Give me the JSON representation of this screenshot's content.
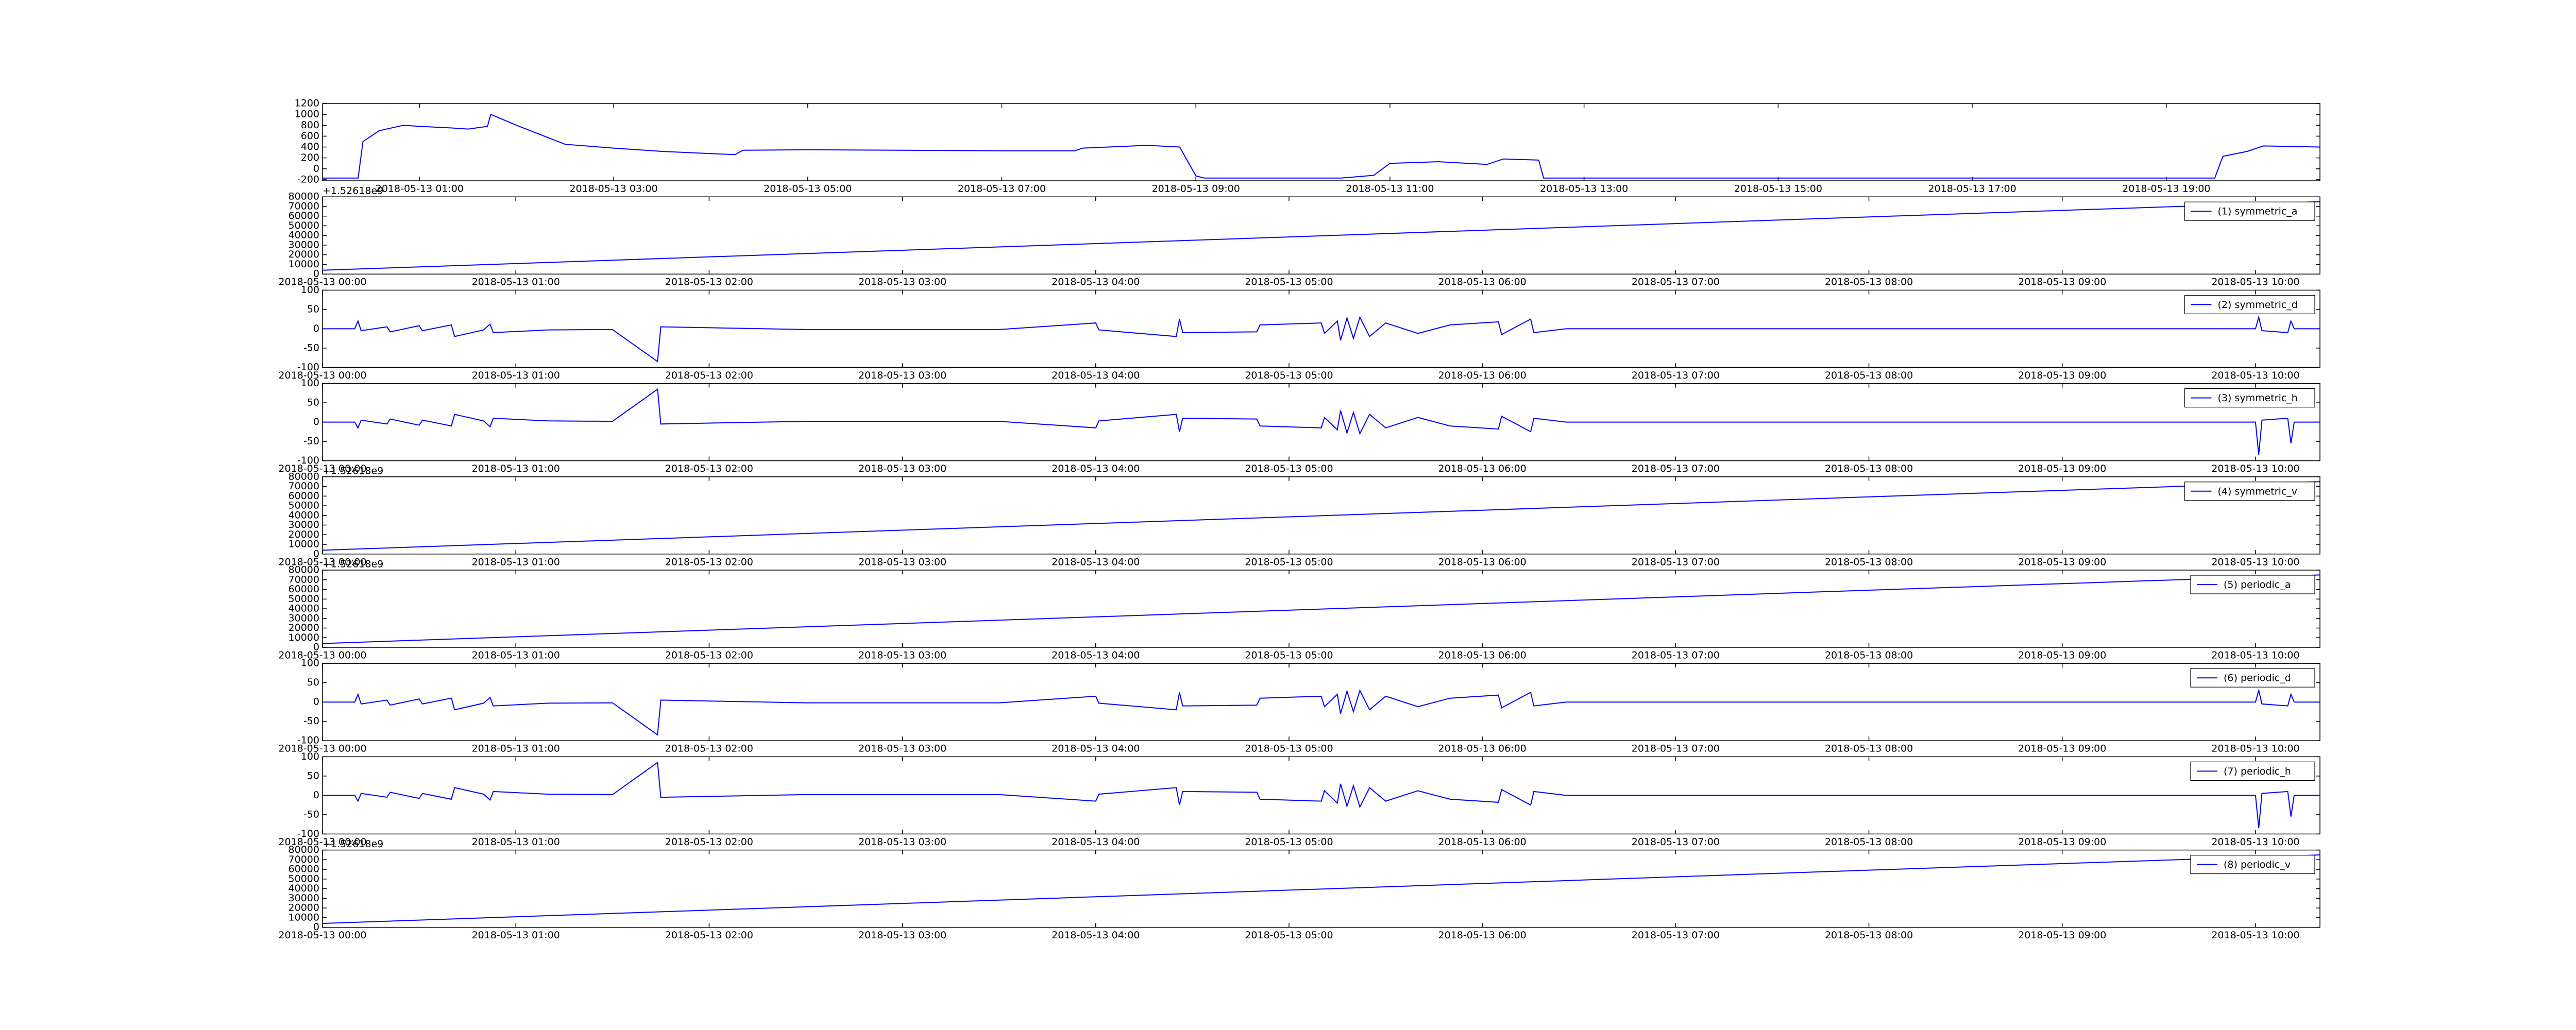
{
  "chart_data": [
    {
      "type": "line",
      "color": "#0000ff",
      "x": [
        "2018-05-13 00:00",
        "2018-05-13 00:22",
        "2018-05-13 00:25",
        "2018-05-13 00:35",
        "2018-05-13 00:50",
        "2018-05-13 01:00",
        "2018-05-13 01:20",
        "2018-05-13 01:30",
        "2018-05-13 01:42",
        "2018-05-13 01:44",
        "2018-05-13 02:00",
        "2018-05-13 02:30",
        "2018-05-13 03:00",
        "2018-05-13 03:30",
        "2018-05-13 04:00",
        "2018-05-13 04:15",
        "2018-05-13 04:20",
        "2018-05-13 05:00",
        "2018-05-13 06:00",
        "2018-05-13 07:00",
        "2018-05-13 07:45",
        "2018-05-13 07:50",
        "2018-05-13 08:30",
        "2018-05-13 08:50",
        "2018-05-13 09:00",
        "2018-05-13 09:05",
        "2018-05-13 10:30",
        "2018-05-13 10:50",
        "2018-05-13 11:00",
        "2018-05-13 11:30",
        "2018-05-13 12:00",
        "2018-05-13 12:10",
        "2018-05-13 12:32",
        "2018-05-13 12:35",
        "2018-05-13 19:30",
        "2018-05-13 19:35",
        "2018-05-13 19:50",
        "2018-05-13 20:00",
        "2018-05-13 20:35"
      ],
      "values": [
        -170,
        -170,
        500,
        700,
        800,
        780,
        750,
        730,
        780,
        1000,
        800,
        450,
        380,
        320,
        280,
        260,
        340,
        350,
        340,
        330,
        330,
        380,
        430,
        400,
        -130,
        -170,
        -170,
        -120,
        100,
        130,
        80,
        180,
        160,
        -170,
        -170,
        230,
        320,
        420,
        400
      ],
      "xlim": [
        "2018-05-13 00:00",
        "2018-05-13 20:35"
      ],
      "xticks": [
        "2018-05-13 01:00",
        "2018-05-13 03:00",
        "2018-05-13 05:00",
        "2018-05-13 07:00",
        "2018-05-13 09:00",
        "2018-05-13 11:00",
        "2018-05-13 13:00",
        "2018-05-13 15:00",
        "2018-05-13 17:00",
        "2018-05-13 19:00"
      ],
      "ylim": [
        -220,
        1200
      ],
      "yticks": [
        -200,
        0,
        200,
        400,
        600,
        800,
        1000,
        1200
      ]
    },
    {
      "type": "line",
      "offset_text": "+1.52618e9",
      "x": [
        "2018-05-13 00:00",
        "2018-05-13 02:00",
        "2018-05-13 04:00",
        "2018-05-13 06:00",
        "2018-05-13 08:00",
        "2018-05-13 10:20"
      ],
      "series": [
        {
          "name": "(1) symmetric_a",
          "color": "#0000ff",
          "values": [
            4000,
            17800,
            31600,
            45400,
            59200,
            75000
          ]
        }
      ],
      "xlim": [
        "2018-05-13 00:00",
        "2018-05-13 10:20"
      ],
      "xticks": [
        "2018-05-13 00:00",
        "2018-05-13 01:00",
        "2018-05-13 02:00",
        "2018-05-13 03:00",
        "2018-05-13 04:00",
        "2018-05-13 05:00",
        "2018-05-13 06:00",
        "2018-05-13 07:00",
        "2018-05-13 08:00",
        "2018-05-13 09:00",
        "2018-05-13 10:00"
      ],
      "ylim": [
        0,
        80000
      ],
      "yticks": [
        0,
        10000,
        20000,
        30000,
        40000,
        50000,
        60000,
        70000,
        80000
      ]
    },
    {
      "type": "line",
      "x": [
        "2018-05-13 00:00",
        "2018-05-13 00:10",
        "2018-05-13 00:11",
        "2018-05-13 00:12",
        "2018-05-13 00:20",
        "2018-05-13 00:21",
        "2018-05-13 00:30",
        "2018-05-13 00:31",
        "2018-05-13 00:40",
        "2018-05-13 00:41",
        "2018-05-13 00:50",
        "2018-05-13 00:52",
        "2018-05-13 00:53",
        "2018-05-13 01:10",
        "2018-05-13 01:30",
        "2018-05-13 01:44",
        "2018-05-13 01:45",
        "2018-05-13 02:30",
        "2018-05-13 03:30",
        "2018-05-13 04:00",
        "2018-05-13 04:01",
        "2018-05-13 04:25",
        "2018-05-13 04:26",
        "2018-05-13 04:27",
        "2018-05-13 04:50",
        "2018-05-13 04:51",
        "2018-05-13 05:10",
        "2018-05-13 05:11",
        "2018-05-13 05:15",
        "2018-05-13 05:16",
        "2018-05-13 05:18",
        "2018-05-13 05:20",
        "2018-05-13 05:22",
        "2018-05-13 05:25",
        "2018-05-13 05:30",
        "2018-05-13 05:40",
        "2018-05-13 05:50",
        "2018-05-13 06:05",
        "2018-05-13 06:06",
        "2018-05-13 06:15",
        "2018-05-13 06:16",
        "2018-05-13 06:26",
        "2018-05-13 10:00",
        "2018-05-13 10:01",
        "2018-05-13 10:02",
        "2018-05-13 10:10",
        "2018-05-13 10:11",
        "2018-05-13 10:12",
        "2018-05-13 10:20"
      ],
      "series": [
        {
          "name": "(2) symmetric_d",
          "color": "#0000ff",
          "values": [
            0,
            0,
            20,
            -5,
            5,
            -8,
            8,
            -5,
            10,
            -20,
            -3,
            12,
            -10,
            -3,
            -2,
            -85,
            5,
            -2,
            -2,
            15,
            -3,
            -20,
            25,
            -10,
            -8,
            10,
            15,
            -12,
            20,
            -30,
            28,
            -25,
            30,
            -20,
            15,
            -12,
            10,
            18,
            -15,
            25,
            -10,
            0,
            0,
            30,
            -5,
            -10,
            20,
            0,
            0
          ]
        }
      ],
      "xlim": [
        "2018-05-13 00:00",
        "2018-05-13 10:20"
      ],
      "xticks": [
        "2018-05-13 00:00",
        "2018-05-13 01:00",
        "2018-05-13 02:00",
        "2018-05-13 03:00",
        "2018-05-13 04:00",
        "2018-05-13 05:00",
        "2018-05-13 06:00",
        "2018-05-13 07:00",
        "2018-05-13 08:00",
        "2018-05-13 09:00",
        "2018-05-13 10:00"
      ],
      "ylim": [
        -100,
        100
      ],
      "yticks": [
        -100,
        -50,
        0,
        50,
        100
      ]
    },
    {
      "type": "line",
      "x": [
        "2018-05-13 00:00",
        "2018-05-13 00:10",
        "2018-05-13 00:11",
        "2018-05-13 00:12",
        "2018-05-13 00:20",
        "2018-05-13 00:21",
        "2018-05-13 00:30",
        "2018-05-13 00:31",
        "2018-05-13 00:40",
        "2018-05-13 00:41",
        "2018-05-13 00:50",
        "2018-05-13 00:52",
        "2018-05-13 00:53",
        "2018-05-13 01:10",
        "2018-05-13 01:30",
        "2018-05-13 01:44",
        "2018-05-13 01:45",
        "2018-05-13 02:30",
        "2018-05-13 03:30",
        "2018-05-13 04:00",
        "2018-05-13 04:01",
        "2018-05-13 04:25",
        "2018-05-13 04:26",
        "2018-05-13 04:27",
        "2018-05-13 04:50",
        "2018-05-13 04:51",
        "2018-05-13 05:10",
        "2018-05-13 05:11",
        "2018-05-13 05:15",
        "2018-05-13 05:16",
        "2018-05-13 05:18",
        "2018-05-13 05:20",
        "2018-05-13 05:22",
        "2018-05-13 05:25",
        "2018-05-13 05:30",
        "2018-05-13 05:40",
        "2018-05-13 05:50",
        "2018-05-13 06:05",
        "2018-05-13 06:06",
        "2018-05-13 06:15",
        "2018-05-13 06:16",
        "2018-05-13 06:26",
        "2018-05-13 10:00",
        "2018-05-13 10:01",
        "2018-05-13 10:02",
        "2018-05-13 10:10",
        "2018-05-13 10:11",
        "2018-05-13 10:12",
        "2018-05-13 10:20"
      ],
      "series": [
        {
          "name": "(3) symmetric_h",
          "color": "#0000ff",
          "values": [
            0,
            0,
            -15,
            5,
            -5,
            8,
            -8,
            5,
            -10,
            20,
            3,
            -12,
            10,
            3,
            2,
            85,
            -5,
            2,
            2,
            -15,
            3,
            20,
            -25,
            10,
            8,
            -10,
            -15,
            12,
            -20,
            30,
            -28,
            25,
            -30,
            20,
            -15,
            12,
            -10,
            -18,
            15,
            -25,
            10,
            0,
            0,
            -85,
            5,
            10,
            -55,
            0,
            0
          ]
        }
      ],
      "xlim": [
        "2018-05-13 00:00",
        "2018-05-13 10:20"
      ],
      "xticks": [
        "2018-05-13 00:00",
        "2018-05-13 01:00",
        "2018-05-13 02:00",
        "2018-05-13 03:00",
        "2018-05-13 04:00",
        "2018-05-13 05:00",
        "2018-05-13 06:00",
        "2018-05-13 07:00",
        "2018-05-13 08:00",
        "2018-05-13 09:00",
        "2018-05-13 10:00"
      ],
      "ylim": [
        -100,
        100
      ],
      "yticks": [
        -100,
        -50,
        0,
        50,
        100
      ]
    },
    {
      "type": "line",
      "offset_text": "+1.52618e9",
      "x": [
        "2018-05-13 00:00",
        "2018-05-13 02:00",
        "2018-05-13 04:00",
        "2018-05-13 06:00",
        "2018-05-13 08:00",
        "2018-05-13 10:20"
      ],
      "series": [
        {
          "name": "(4) symmetric_v",
          "color": "#0000ff",
          "values": [
            4000,
            17800,
            31600,
            45400,
            59200,
            75000
          ]
        }
      ],
      "xlim": [
        "2018-05-13 00:00",
        "2018-05-13 10:20"
      ],
      "xticks": [
        "2018-05-13 00:00",
        "2018-05-13 01:00",
        "2018-05-13 02:00",
        "2018-05-13 03:00",
        "2018-05-13 04:00",
        "2018-05-13 05:00",
        "2018-05-13 06:00",
        "2018-05-13 07:00",
        "2018-05-13 08:00",
        "2018-05-13 09:00",
        "2018-05-13 10:00"
      ],
      "ylim": [
        0,
        80000
      ],
      "yticks": [
        0,
        10000,
        20000,
        30000,
        40000,
        50000,
        60000,
        70000,
        80000
      ]
    },
    {
      "type": "line",
      "offset_text": "+1.52618e9",
      "x": [
        "2018-05-13 00:00",
        "2018-05-13 02:00",
        "2018-05-13 04:00",
        "2018-05-13 06:00",
        "2018-05-13 08:00",
        "2018-05-13 10:20"
      ],
      "series": [
        {
          "name": "(5) periodic_a",
          "color": "#0000ff",
          "values": [
            4000,
            17800,
            31600,
            45400,
            59200,
            75000
          ]
        }
      ],
      "xlim": [
        "2018-05-13 00:00",
        "2018-05-13 10:20"
      ],
      "xticks": [
        "2018-05-13 00:00",
        "2018-05-13 01:00",
        "2018-05-13 02:00",
        "2018-05-13 03:00",
        "2018-05-13 04:00",
        "2018-05-13 05:00",
        "2018-05-13 06:00",
        "2018-05-13 07:00",
        "2018-05-13 08:00",
        "2018-05-13 09:00",
        "2018-05-13 10:00"
      ],
      "ylim": [
        0,
        80000
      ],
      "yticks": [
        0,
        10000,
        20000,
        30000,
        40000,
        50000,
        60000,
        70000,
        80000
      ]
    },
    {
      "type": "line",
      "x": [
        "2018-05-13 00:00",
        "2018-05-13 00:10",
        "2018-05-13 00:11",
        "2018-05-13 00:12",
        "2018-05-13 00:20",
        "2018-05-13 00:21",
        "2018-05-13 00:30",
        "2018-05-13 00:31",
        "2018-05-13 00:40",
        "2018-05-13 00:41",
        "2018-05-13 00:50",
        "2018-05-13 00:52",
        "2018-05-13 00:53",
        "2018-05-13 01:10",
        "2018-05-13 01:30",
        "2018-05-13 01:44",
        "2018-05-13 01:45",
        "2018-05-13 02:30",
        "2018-05-13 03:30",
        "2018-05-13 04:00",
        "2018-05-13 04:01",
        "2018-05-13 04:25",
        "2018-05-13 04:26",
        "2018-05-13 04:27",
        "2018-05-13 04:50",
        "2018-05-13 04:51",
        "2018-05-13 05:10",
        "2018-05-13 05:11",
        "2018-05-13 05:15",
        "2018-05-13 05:16",
        "2018-05-13 05:18",
        "2018-05-13 05:20",
        "2018-05-13 05:22",
        "2018-05-13 05:25",
        "2018-05-13 05:30",
        "2018-05-13 05:40",
        "2018-05-13 05:50",
        "2018-05-13 06:05",
        "2018-05-13 06:06",
        "2018-05-13 06:15",
        "2018-05-13 06:16",
        "2018-05-13 06:26",
        "2018-05-13 10:00",
        "2018-05-13 10:01",
        "2018-05-13 10:02",
        "2018-05-13 10:10",
        "2018-05-13 10:11",
        "2018-05-13 10:12",
        "2018-05-13 10:20"
      ],
      "series": [
        {
          "name": "(6) periodic_d",
          "color": "#0000ff",
          "values": [
            0,
            0,
            20,
            -5,
            5,
            -8,
            8,
            -5,
            10,
            -20,
            -3,
            12,
            -10,
            -3,
            -2,
            -85,
            5,
            -2,
            -2,
            15,
            -3,
            -20,
            25,
            -10,
            -8,
            10,
            15,
            -12,
            20,
            -30,
            28,
            -25,
            30,
            -20,
            15,
            -12,
            10,
            18,
            -15,
            25,
            -10,
            0,
            0,
            30,
            -5,
            -10,
            20,
            0,
            0
          ]
        }
      ],
      "xlim": [
        "2018-05-13 00:00",
        "2018-05-13 10:20"
      ],
      "xticks": [
        "2018-05-13 00:00",
        "2018-05-13 01:00",
        "2018-05-13 02:00",
        "2018-05-13 03:00",
        "2018-05-13 04:00",
        "2018-05-13 05:00",
        "2018-05-13 06:00",
        "2018-05-13 07:00",
        "2018-05-13 08:00",
        "2018-05-13 09:00",
        "2018-05-13 10:00"
      ],
      "ylim": [
        -100,
        100
      ],
      "yticks": [
        -100,
        -50,
        0,
        50,
        100
      ]
    },
    {
      "type": "line",
      "x": [
        "2018-05-13 00:00",
        "2018-05-13 00:10",
        "2018-05-13 00:11",
        "2018-05-13 00:12",
        "2018-05-13 00:20",
        "2018-05-13 00:21",
        "2018-05-13 00:30",
        "2018-05-13 00:31",
        "2018-05-13 00:40",
        "2018-05-13 00:41",
        "2018-05-13 00:50",
        "2018-05-13 00:52",
        "2018-05-13 00:53",
        "2018-05-13 01:10",
        "2018-05-13 01:30",
        "2018-05-13 01:44",
        "2018-05-13 01:45",
        "2018-05-13 02:30",
        "2018-05-13 03:30",
        "2018-05-13 04:00",
        "2018-05-13 04:01",
        "2018-05-13 04:25",
        "2018-05-13 04:26",
        "2018-05-13 04:27",
        "2018-05-13 04:50",
        "2018-05-13 04:51",
        "2018-05-13 05:10",
        "2018-05-13 05:11",
        "2018-05-13 05:15",
        "2018-05-13 05:16",
        "2018-05-13 05:18",
        "2018-05-13 05:20",
        "2018-05-13 05:22",
        "2018-05-13 05:25",
        "2018-05-13 05:30",
        "2018-05-13 05:40",
        "2018-05-13 05:50",
        "2018-05-13 06:05",
        "2018-05-13 06:06",
        "2018-05-13 06:15",
        "2018-05-13 06:16",
        "2018-05-13 06:26",
        "2018-05-13 10:00",
        "2018-05-13 10:01",
        "2018-05-13 10:02",
        "2018-05-13 10:10",
        "2018-05-13 10:11",
        "2018-05-13 10:12",
        "2018-05-13 10:20"
      ],
      "series": [
        {
          "name": "(7) periodic_h",
          "color": "#0000ff",
          "values": [
            0,
            0,
            -15,
            5,
            -5,
            8,
            -8,
            5,
            -10,
            20,
            3,
            -12,
            10,
            3,
            2,
            85,
            -5,
            2,
            2,
            -15,
            3,
            20,
            -25,
            10,
            8,
            -10,
            -15,
            12,
            -20,
            30,
            -28,
            25,
            -30,
            20,
            -15,
            12,
            -10,
            -18,
            15,
            -25,
            10,
            0,
            0,
            -85,
            5,
            10,
            -55,
            0,
            0
          ]
        }
      ],
      "xlim": [
        "2018-05-13 00:00",
        "2018-05-13 10:20"
      ],
      "xticks": [
        "2018-05-13 00:00",
        "2018-05-13 01:00",
        "2018-05-13 02:00",
        "2018-05-13 03:00",
        "2018-05-13 04:00",
        "2018-05-13 05:00",
        "2018-05-13 06:00",
        "2018-05-13 07:00",
        "2018-05-13 08:00",
        "2018-05-13 09:00",
        "2018-05-13 10:00"
      ],
      "ylim": [
        -100,
        100
      ],
      "yticks": [
        -100,
        -50,
        0,
        50,
        100
      ]
    },
    {
      "type": "line",
      "offset_text": "+1.52618e9",
      "x": [
        "2018-05-13 00:00",
        "2018-05-13 02:00",
        "2018-05-13 04:00",
        "2018-05-13 06:00",
        "2018-05-13 08:00",
        "2018-05-13 10:20"
      ],
      "series": [
        {
          "name": "(8) periodic_v",
          "color": "#0000ff",
          "values": [
            4000,
            17800,
            31600,
            45400,
            59200,
            75000
          ]
        }
      ],
      "xlim": [
        "2018-05-13 00:00",
        "2018-05-13 10:20"
      ],
      "xticks": [
        "2018-05-13 00:00",
        "2018-05-13 01:00",
        "2018-05-13 02:00",
        "2018-05-13 03:00",
        "2018-05-13 04:00",
        "2018-05-13 05:00",
        "2018-05-13 06:00",
        "2018-05-13 07:00",
        "2018-05-13 08:00",
        "2018-05-13 09:00",
        "2018-05-13 10:00"
      ],
      "ylim": [
        0,
        80000
      ],
      "yticks": [
        0,
        10000,
        20000,
        30000,
        40000,
        50000,
        60000,
        70000,
        80000
      ]
    }
  ]
}
